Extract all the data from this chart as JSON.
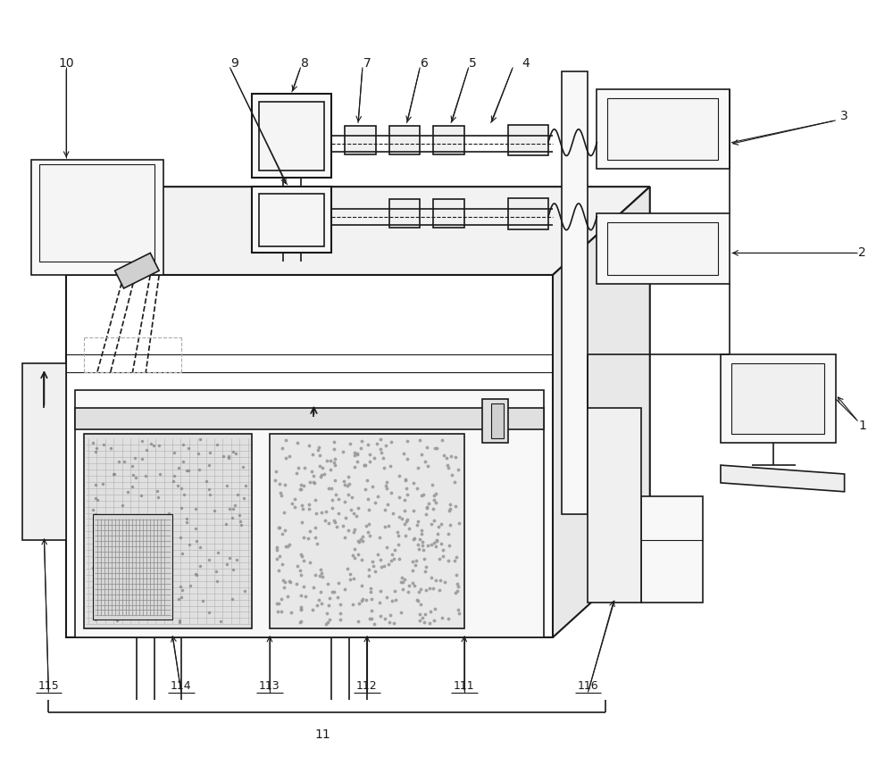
{
  "bg": "#ffffff",
  "lc": "#1a1a1a",
  "lw": 1.5,
  "lw2": 1.2,
  "lw3": 0.8,
  "fig_w": 10.0,
  "fig_h": 8.57,
  "dpi": 100
}
